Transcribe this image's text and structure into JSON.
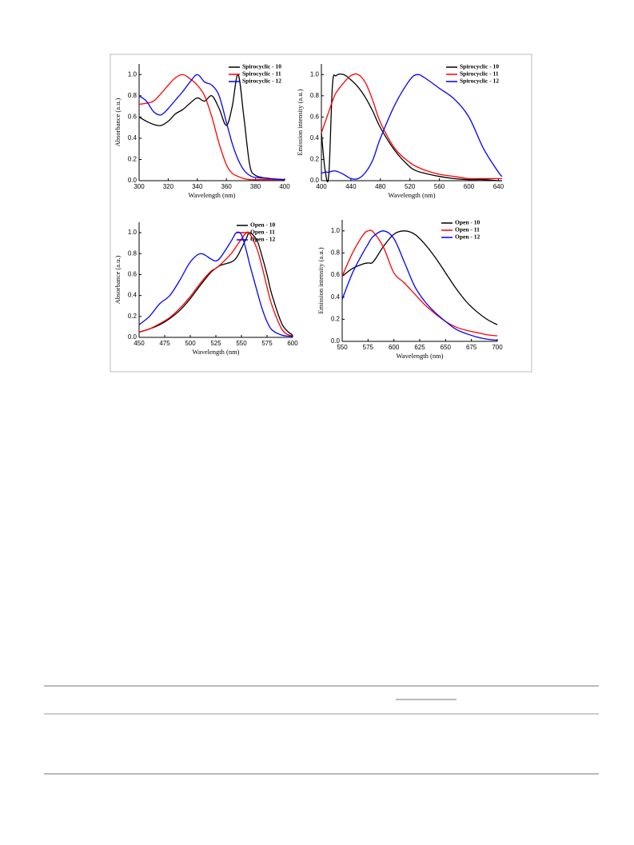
{
  "chart_data": [
    {
      "type": "line",
      "xlabel": "Wavelength (nm)",
      "ylabel": "Absorbance (a.u.)",
      "legend": "upper right",
      "x": [
        300,
        305,
        310,
        315,
        320,
        325,
        330,
        335,
        340,
        345,
        350,
        355,
        360,
        364,
        368,
        372,
        376,
        380,
        390,
        400
      ],
      "xlim": [
        300,
        400
      ],
      "xticks": [
        300,
        320,
        340,
        360,
        380,
        400
      ],
      "ylim": [
        0,
        1.1
      ],
      "yticks": [
        {
          "value": 0,
          "label": "0.0"
        },
        0.2,
        0.4,
        0.6,
        0.8,
        {
          "value": 1,
          "label": "1.0"
        }
      ],
      "series": [
        {
          "name": "Spirocyclic  - 10",
          "color": "#000000",
          "values": [
            0.6,
            0.56,
            0.53,
            0.52,
            0.56,
            0.63,
            0.67,
            0.73,
            0.78,
            0.75,
            0.8,
            0.68,
            0.52,
            0.7,
            1.0,
            0.6,
            0.15,
            0.05,
            0.02,
            0.01
          ]
        },
        {
          "name": "Spirocyclic - 11",
          "color": "#ff0000",
          "values": [
            0.72,
            0.73,
            0.75,
            0.82,
            0.9,
            0.97,
            1.0,
            0.96,
            0.9,
            0.8,
            0.6,
            0.35,
            0.15,
            0.07,
            0.04,
            0.02,
            0.01,
            0.01,
            0.01,
            0.01
          ]
        },
        {
          "name": "Spirocyclic - 12",
          "color": "#0000ff",
          "values": [
            0.8,
            0.75,
            0.65,
            0.62,
            0.68,
            0.76,
            0.84,
            0.93,
            1.0,
            0.93,
            0.9,
            0.8,
            0.55,
            0.35,
            0.2,
            0.1,
            0.05,
            0.03,
            0.02,
            0.01
          ]
        }
      ]
    },
    {
      "type": "line",
      "xlabel": "Wavelength (nm)",
      "ylabel": "Emission intensity (a.u.)",
      "legend": "upper right",
      "x": [
        400,
        405,
        410,
        415,
        420,
        430,
        440,
        450,
        460,
        470,
        480,
        500,
        520,
        530,
        540,
        560,
        580,
        600,
        620,
        640,
        645
      ],
      "xlim": [
        400,
        645
      ],
      "xticks": [
        400,
        440,
        480,
        520,
        560,
        600,
        640
      ],
      "ylim": [
        0,
        1.1
      ],
      "yticks": [
        {
          "value": 0,
          "label": "0.0"
        },
        0.2,
        0.4,
        0.6,
        0.8,
        {
          "value": 1,
          "label": "1.0"
        }
      ],
      "series": [
        {
          "name": "Spirocyclic - 10",
          "color": "#000000",
          "values": [
            0.45,
            0.1,
            0.05,
            0.9,
            0.99,
            1.0,
            0.95,
            0.88,
            0.78,
            0.65,
            0.5,
            0.28,
            0.13,
            0.09,
            0.07,
            0.04,
            0.02,
            0.01,
            0.01,
            0.0,
            0.0
          ]
        },
        {
          "name": "Spirocyclic - 11",
          "color": "#ff0000",
          "values": [
            0.45,
            0.55,
            0.65,
            0.75,
            0.83,
            0.92,
            0.99,
            1.0,
            0.92,
            0.75,
            0.55,
            0.3,
            0.17,
            0.13,
            0.1,
            0.06,
            0.04,
            0.02,
            0.02,
            0.02,
            0.02
          ]
        },
        {
          "name": "Spirocyclic - 12",
          "color": "#0000ff",
          "values": [
            0.07,
            0.08,
            0.08,
            0.09,
            0.09,
            0.06,
            0.02,
            0.02,
            0.08,
            0.2,
            0.4,
            0.72,
            0.95,
            1.0,
            0.97,
            0.87,
            0.77,
            0.6,
            0.3,
            0.08,
            0.04
          ]
        }
      ]
    },
    {
      "type": "line",
      "xlabel": "Wavelength (nm)",
      "ylabel": "Absorbance (a.u.)",
      "legend": "upper right",
      "x": [
        450,
        460,
        470,
        480,
        490,
        500,
        510,
        520,
        525,
        530,
        540,
        545,
        550,
        555,
        558,
        565,
        570,
        575,
        580,
        590,
        600
      ],
      "xlim": [
        450,
        600
      ],
      "xticks": [
        450,
        475,
        500,
        525,
        550,
        575,
        600
      ],
      "ylim": [
        0,
        1.1
      ],
      "yticks": [
        {
          "value": 0,
          "label": "0.0"
        },
        0.2,
        0.4,
        0.6,
        0.8,
        {
          "value": 1,
          "label": "1.0"
        }
      ],
      "series": [
        {
          "name": "Open - 10",
          "color": "#000000",
          "values": [
            0.05,
            0.08,
            0.12,
            0.18,
            0.26,
            0.37,
            0.5,
            0.62,
            0.66,
            0.69,
            0.72,
            0.76,
            0.85,
            0.95,
            1.0,
            0.93,
            0.78,
            0.6,
            0.4,
            0.12,
            0.02
          ]
        },
        {
          "name": "Open - 11",
          "color": "#ff0000",
          "values": [
            0.05,
            0.08,
            0.13,
            0.19,
            0.28,
            0.39,
            0.52,
            0.63,
            0.66,
            0.7,
            0.8,
            0.87,
            0.94,
            1.0,
            0.99,
            0.85,
            0.68,
            0.48,
            0.3,
            0.07,
            0.01
          ]
        },
        {
          "name": "Open - 12",
          "color": "#0000ff",
          "values": [
            0.12,
            0.2,
            0.32,
            0.4,
            0.55,
            0.72,
            0.8,
            0.75,
            0.73,
            0.77,
            0.92,
            1.0,
            0.98,
            0.82,
            0.7,
            0.45,
            0.28,
            0.15,
            0.07,
            0.02,
            0.01
          ]
        }
      ]
    },
    {
      "type": "line",
      "xlabel": "Wavelength (nm)",
      "ylabel": "Emission intensity (a.u.)",
      "legend": "upper right",
      "x": [
        550,
        560,
        570,
        575,
        580,
        590,
        600,
        610,
        620,
        630,
        640,
        650,
        660,
        670,
        680,
        690,
        700
      ],
      "xlim": [
        550,
        700
      ],
      "xticks": [
        550,
        575,
        600,
        625,
        650,
        675,
        700
      ],
      "ylim": [
        0,
        1.1
      ],
      "yticks": [
        {
          "value": 0,
          "label": "0.0"
        },
        0.2,
        0.4,
        0.6,
        0.8,
        {
          "value": 1,
          "label": "1.0"
        }
      ],
      "series": [
        {
          "name": "Open - 10",
          "color": "#000000",
          "values": [
            0.59,
            0.66,
            0.7,
            0.71,
            0.72,
            0.86,
            0.97,
            1.0,
            0.97,
            0.88,
            0.76,
            0.62,
            0.48,
            0.36,
            0.27,
            0.2,
            0.15
          ]
        },
        {
          "name": "Open - 11",
          "color": "#ff0000",
          "values": [
            0.59,
            0.8,
            0.96,
            1.0,
            0.99,
            0.85,
            0.62,
            0.53,
            0.43,
            0.33,
            0.25,
            0.18,
            0.13,
            0.1,
            0.08,
            0.06,
            0.05
          ]
        },
        {
          "name": "Open - 12",
          "color": "#0000ff",
          "values": [
            0.38,
            0.62,
            0.8,
            0.88,
            0.95,
            1.0,
            0.93,
            0.72,
            0.5,
            0.36,
            0.26,
            0.18,
            0.11,
            0.07,
            0.04,
            0.02,
            0.01
          ]
        }
      ]
    }
  ]
}
